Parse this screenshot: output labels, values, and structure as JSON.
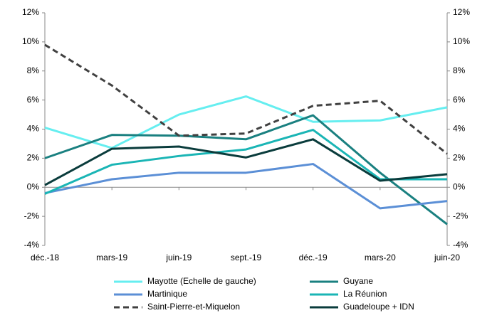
{
  "chart_data": {
    "type": "line",
    "categories": [
      "déc.-18",
      "mars-19",
      "juin-19",
      "sept.-19",
      "déc.-19",
      "mars-20",
      "juin-20"
    ],
    "series": [
      {
        "name": "Mayotte (Echelle de gauche)",
        "color": "#66eef0",
        "values": [
          4.1,
          2.7,
          5.0,
          6.25,
          4.5,
          4.6,
          5.5
        ]
      },
      {
        "name": "Guyane",
        "color": "#1a8080",
        "axis": "y2",
        "values": [
          2.0,
          3.6,
          3.55,
          3.3,
          4.95,
          1.0,
          -2.55
        ]
      },
      {
        "name": "Martinique",
        "color": "#5b8fd6",
        "axis": "y2",
        "values": [
          -0.4,
          0.55,
          1.0,
          1.0,
          1.6,
          -1.45,
          -0.95
        ]
      },
      {
        "name": "La Réunion",
        "color": "#1ab5b5",
        "axis": "y2",
        "values": [
          -0.45,
          1.55,
          2.15,
          2.6,
          3.95,
          0.55,
          0.55
        ]
      },
      {
        "name": "Saint-Pierre-et-Miquelon",
        "color": "#404040",
        "dashed": true,
        "axis": "y2",
        "values": [
          9.8,
          7.0,
          3.55,
          3.7,
          5.6,
          5.95,
          2.3
        ]
      },
      {
        "name": "Guadeloupe + IDN",
        "color": "#0a3c3c",
        "axis": "y2",
        "values": [
          0.15,
          2.65,
          2.8,
          2.05,
          3.3,
          0.45,
          0.9
        ]
      }
    ],
    "ylim": [
      -4,
      12
    ],
    "yticks": [
      {
        "value": -4,
        "label": "-4%"
      },
      {
        "value": -2,
        "label": "-2%"
      },
      {
        "value": 0,
        "label": "0%"
      },
      {
        "value": 2,
        "label": "2%"
      },
      {
        "value": 4,
        "label": "4%"
      },
      {
        "value": 6,
        "label": "6%"
      },
      {
        "value": 8,
        "label": "8%"
      },
      {
        "value": 10,
        "label": "10%"
      },
      {
        "value": 12,
        "label": "12%"
      }
    ],
    "y2lim": [
      -4,
      12
    ],
    "y2ticks": [
      {
        "value": -4,
        "label": "-4%"
      },
      {
        "value": -2,
        "label": "-2%"
      },
      {
        "value": 0,
        "label": "0%"
      },
      {
        "value": 2,
        "label": "2%"
      },
      {
        "value": 4,
        "label": "4%"
      },
      {
        "value": 6,
        "label": "6%"
      },
      {
        "value": 8,
        "label": "8%"
      },
      {
        "value": 10,
        "label": "10%"
      },
      {
        "value": 12,
        "label": "12%"
      }
    ]
  }
}
